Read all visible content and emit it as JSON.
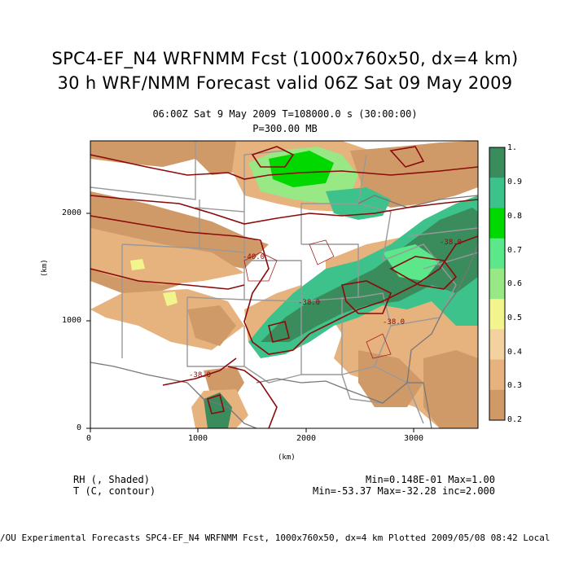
{
  "header": {
    "title_line1": "SPC4-EF_N4 WRFNMM Fcst (1000x760x50, dx=4 km)",
    "title_line2": "30 h WRF/NMM Forecast valid 06Z Sat 09 May 2009",
    "time_line": "06:00Z Sat  9 May 2009     T=108000.0 s (30:00:00)",
    "level_line": "P=300.00 MB"
  },
  "axes": {
    "x_unit": "(km)",
    "y_unit": "(km)",
    "x_ticks": [
      "0",
      "1000",
      "2000",
      "3000"
    ],
    "y_ticks": [
      "0",
      "1000",
      "2000"
    ],
    "x_range_km": [
      0,
      3600
    ],
    "y_range_km": [
      0,
      2680
    ]
  },
  "colorbar": {
    "labels": [
      "1.",
      "0.9",
      "0.8",
      "0.7",
      "0.6",
      "0.5",
      "0.4",
      "0.3",
      "0.2"
    ],
    "colors": [
      "#3a8c5c",
      "#3cc28a",
      "#00d800",
      "#5ce88a",
      "#98e886",
      "#f2f48e",
      "#f4d2a0",
      "#e6b27e",
      "#d09a68"
    ]
  },
  "contour_labels": [
    "-40.0",
    "-38.0",
    "-38.0",
    "-38.0",
    "-38.0"
  ],
  "legend": {
    "field1": "RH (, Shaded)",
    "field2": "T (C, contour)",
    "stats1": "Min=0.148E-01 Max=1.00",
    "stats2": "Min=-53.37 Max=-32.28 inc=2.000"
  },
  "footer": "/OU Experimental Forecasts  SPC4-EF_N4 WRFNMM Fcst, 1000x760x50, dx=4 km  Plotted 2009/05/08 08:42 Local",
  "colors": {
    "contour": "#8b0a0a",
    "borders": "#999999",
    "rh_low": "#d09a68",
    "rh_mid": "#e6b27e",
    "rh_high": "#3a8c5c"
  }
}
